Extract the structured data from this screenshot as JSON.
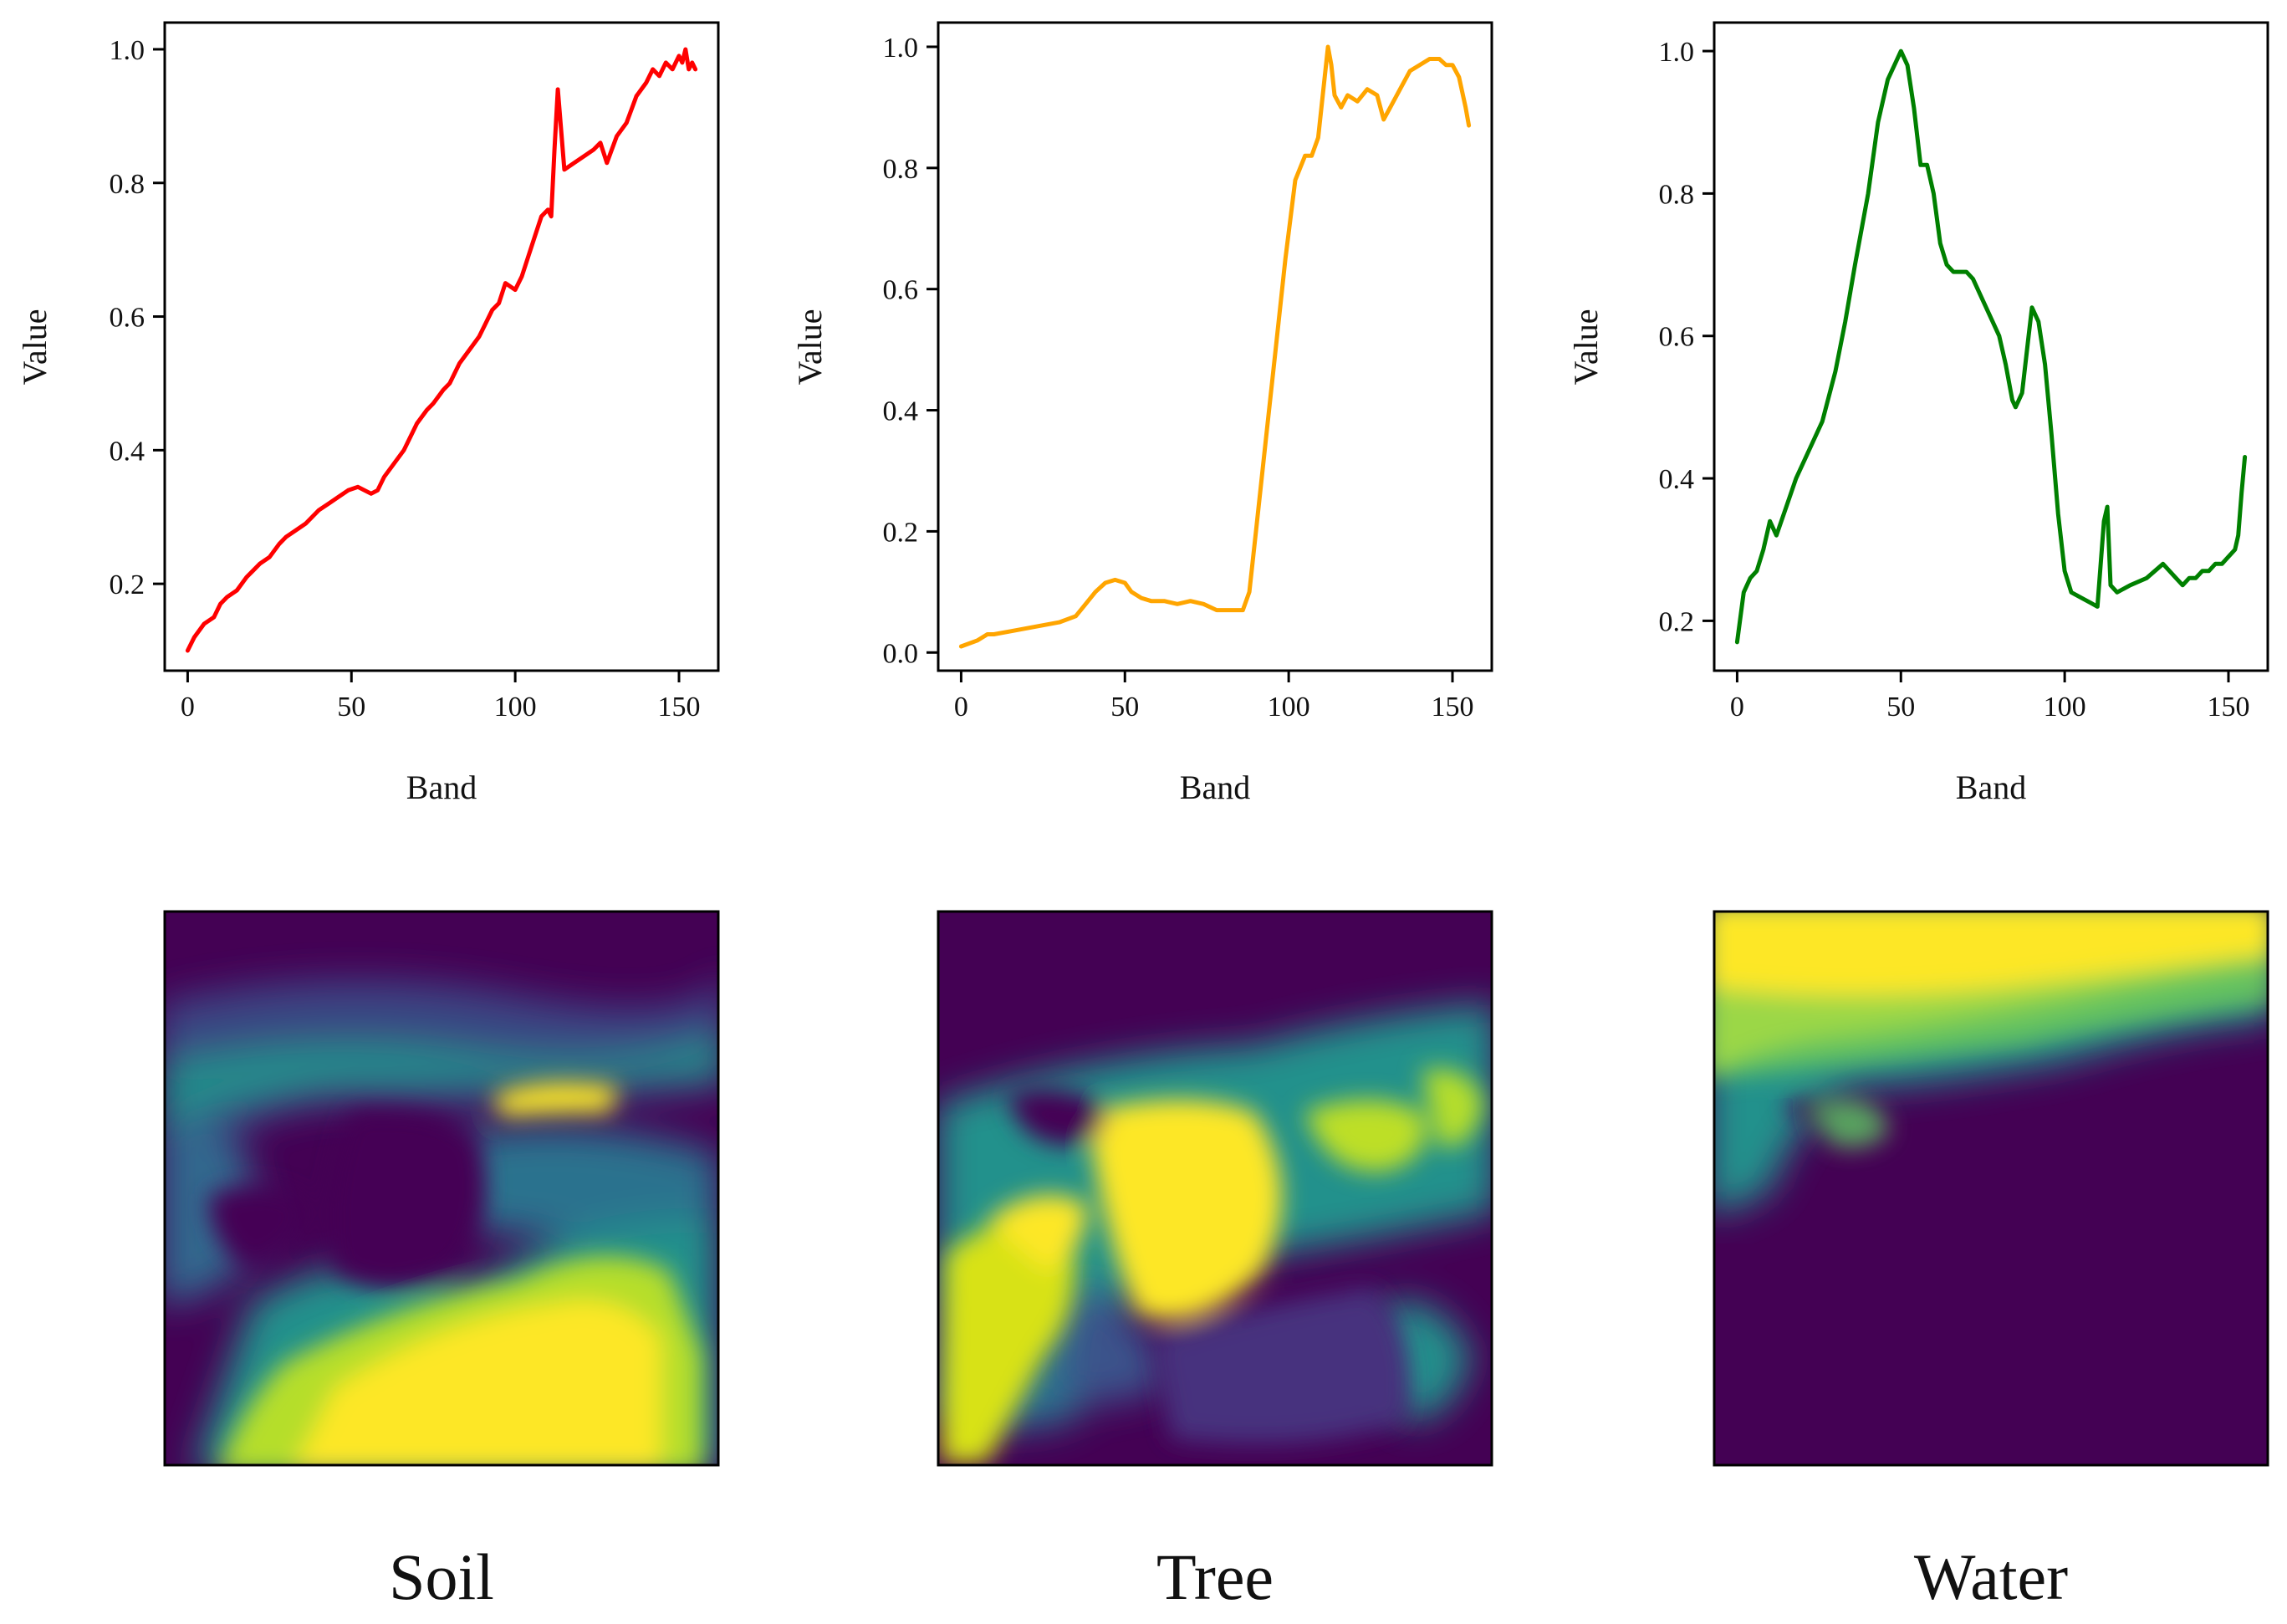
{
  "chart_data": [
    {
      "type": "line",
      "name": "soil",
      "xlabel": "Band",
      "ylabel": "Value",
      "xlim": [
        -7,
        162
      ],
      "ylim": [
        0.07,
        1.04
      ],
      "xticks": [
        0,
        50,
        100,
        150
      ],
      "xtick_labels": [
        "0",
        "50",
        "100",
        "150"
      ],
      "yticks": [
        0.2,
        0.4,
        0.6,
        0.8,
        1.0
      ],
      "ytick_labels": [
        "0.2",
        "0.4",
        "0.6",
        "0.8",
        "1.0"
      ],
      "color": "#ff0000",
      "series": [
        {
          "name": "Soil",
          "x": [
            0,
            2,
            5,
            8,
            10,
            12,
            15,
            18,
            20,
            22,
            25,
            28,
            30,
            33,
            36,
            40,
            43,
            46,
            49,
            52,
            54,
            56,
            58,
            60,
            63,
            66,
            68,
            70,
            73,
            75,
            78,
            80,
            83,
            86,
            89,
            91,
            93,
            95,
            97,
            100,
            102,
            104,
            106,
            108,
            110,
            111,
            112,
            113,
            115,
            118,
            121,
            124,
            126,
            128,
            131,
            134,
            137,
            140,
            142,
            144,
            146,
            148,
            150,
            151,
            152,
            153,
            154,
            155
          ],
          "values": [
            0.1,
            0.12,
            0.14,
            0.15,
            0.17,
            0.18,
            0.19,
            0.21,
            0.22,
            0.23,
            0.24,
            0.26,
            0.27,
            0.28,
            0.29,
            0.31,
            0.32,
            0.33,
            0.34,
            0.345,
            0.34,
            0.335,
            0.34,
            0.36,
            0.38,
            0.4,
            0.42,
            0.44,
            0.46,
            0.47,
            0.49,
            0.5,
            0.53,
            0.55,
            0.57,
            0.59,
            0.61,
            0.62,
            0.65,
            0.64,
            0.66,
            0.69,
            0.72,
            0.75,
            0.76,
            0.75,
            0.85,
            0.94,
            0.82,
            0.83,
            0.84,
            0.85,
            0.86,
            0.83,
            0.87,
            0.89,
            0.93,
            0.95,
            0.97,
            0.96,
            0.98,
            0.97,
            0.99,
            0.98,
            1.0,
            0.97,
            0.98,
            0.97
          ]
        }
      ]
    },
    {
      "type": "line",
      "name": "tree",
      "xlabel": "Band",
      "ylabel": "Value",
      "xlim": [
        -7,
        162
      ],
      "ylim": [
        -0.03,
        1.04
      ],
      "xticks": [
        0,
        50,
        100,
        150
      ],
      "xtick_labels": [
        "0",
        "50",
        "100",
        "150"
      ],
      "yticks": [
        0.0,
        0.2,
        0.4,
        0.6,
        0.8,
        1.0
      ],
      "ytick_labels": [
        "0.0",
        "0.2",
        "0.4",
        "0.6",
        "0.8",
        "1.0"
      ],
      "color": "#ffa500",
      "series": [
        {
          "name": "Tree",
          "x": [
            0,
            5,
            8,
            10,
            15,
            20,
            25,
            30,
            35,
            38,
            41,
            44,
            47,
            50,
            52,
            55,
            58,
            62,
            66,
            70,
            74,
            78,
            82,
            86,
            88,
            90,
            93,
            96,
            99,
            102,
            105,
            107,
            109,
            110,
            111,
            112,
            113,
            114,
            116,
            118,
            121,
            124,
            127,
            129,
            131,
            134,
            137,
            140,
            143,
            146,
            148,
            150,
            152,
            154,
            155
          ],
          "values": [
            0.01,
            0.02,
            0.03,
            0.03,
            0.035,
            0.04,
            0.045,
            0.05,
            0.06,
            0.08,
            0.1,
            0.115,
            0.12,
            0.115,
            0.1,
            0.09,
            0.085,
            0.085,
            0.08,
            0.085,
            0.08,
            0.07,
            0.07,
            0.07,
            0.1,
            0.2,
            0.35,
            0.5,
            0.65,
            0.78,
            0.82,
            0.82,
            0.85,
            0.9,
            0.95,
            1.0,
            0.97,
            0.92,
            0.9,
            0.92,
            0.91,
            0.93,
            0.92,
            0.88,
            0.9,
            0.93,
            0.96,
            0.97,
            0.98,
            0.98,
            0.97,
            0.97,
            0.95,
            0.9,
            0.87
          ]
        }
      ]
    },
    {
      "type": "line",
      "name": "water",
      "xlabel": "Band",
      "ylabel": "Value",
      "xlim": [
        -7,
        162
      ],
      "ylim": [
        0.13,
        1.04
      ],
      "xticks": [
        0,
        50,
        100,
        150
      ],
      "xtick_labels": [
        "0",
        "50",
        "100",
        "150"
      ],
      "yticks": [
        0.2,
        0.4,
        0.6,
        0.8,
        1.0
      ],
      "ytick_labels": [
        "0.2",
        "0.4",
        "0.6",
        "0.8",
        "1.0"
      ],
      "color": "#008000",
      "series": [
        {
          "name": "Water",
          "x": [
            0,
            2,
            4,
            6,
            8,
            10,
            12,
            15,
            18,
            22,
            26,
            30,
            33,
            36,
            40,
            43,
            46,
            49,
            50,
            52,
            54,
            56,
            58,
            60,
            62,
            64,
            66,
            68,
            70,
            72,
            75,
            78,
            80,
            82,
            84,
            85,
            87,
            89,
            90,
            92,
            94,
            96,
            98,
            100,
            102,
            104,
            106,
            108,
            110,
            111,
            112,
            113,
            114,
            116,
            120,
            125,
            130,
            132,
            134,
            136,
            138,
            140,
            142,
            144,
            146,
            148,
            150,
            152,
            153,
            154,
            155
          ],
          "values": [
            0.17,
            0.24,
            0.26,
            0.27,
            0.3,
            0.34,
            0.32,
            0.36,
            0.4,
            0.44,
            0.48,
            0.55,
            0.62,
            0.7,
            0.8,
            0.9,
            0.96,
            0.99,
            1.0,
            0.98,
            0.92,
            0.84,
            0.84,
            0.8,
            0.73,
            0.7,
            0.69,
            0.69,
            0.69,
            0.68,
            0.65,
            0.62,
            0.6,
            0.56,
            0.51,
            0.5,
            0.52,
            0.6,
            0.64,
            0.62,
            0.56,
            0.46,
            0.35,
            0.27,
            0.24,
            0.235,
            0.23,
            0.225,
            0.22,
            0.28,
            0.34,
            0.36,
            0.25,
            0.24,
            0.25,
            0.26,
            0.28,
            0.27,
            0.26,
            0.25,
            0.26,
            0.26,
            0.27,
            0.27,
            0.28,
            0.28,
            0.29,
            0.3,
            0.32,
            0.38,
            0.43
          ]
        }
      ]
    }
  ],
  "captions": [
    "Soil",
    "Tree",
    "Water"
  ]
}
